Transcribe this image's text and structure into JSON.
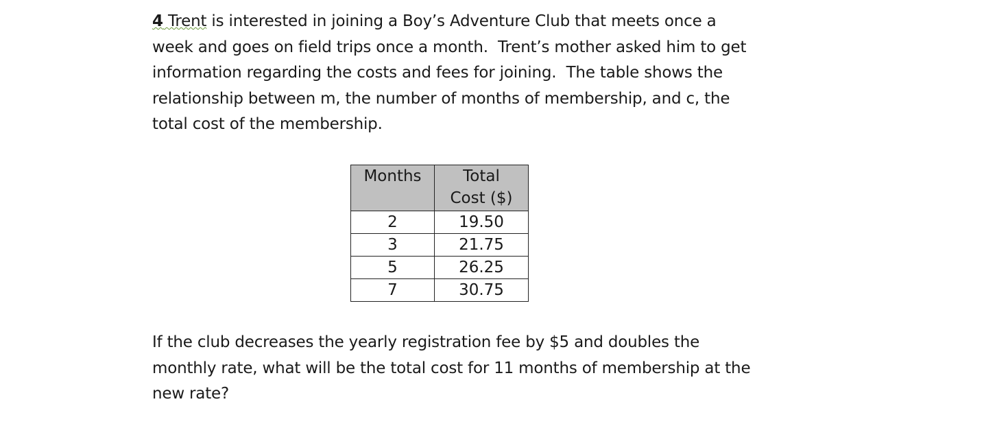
{
  "question": {
    "number": "4",
    "first_word": "Trent",
    "intro_lines": [
      " is interested in joining a Boy’s Adventure Club that meets once a",
      "week and goes on field trips once a month.  Trent’s mother asked him to get",
      "information regarding the costs and fees for joining.  The table shows the",
      "relationship between m, the number of months of membership, and c, the",
      "total cost of the membership."
    ],
    "prompt_lines": [
      "If the club decreases the yearly registration fee by $5 and doubles the",
      "monthly rate, what will be the total cost for 11 months of membership at the",
      "new rate?"
    ]
  },
  "table": {
    "headers": [
      "Months",
      "Total Cost ($)"
    ],
    "rows": [
      [
        "2",
        "19.50"
      ],
      [
        "3",
        "21.75"
      ],
      [
        "5",
        "26.25"
      ],
      [
        "7",
        "30.75"
      ]
    ]
  }
}
